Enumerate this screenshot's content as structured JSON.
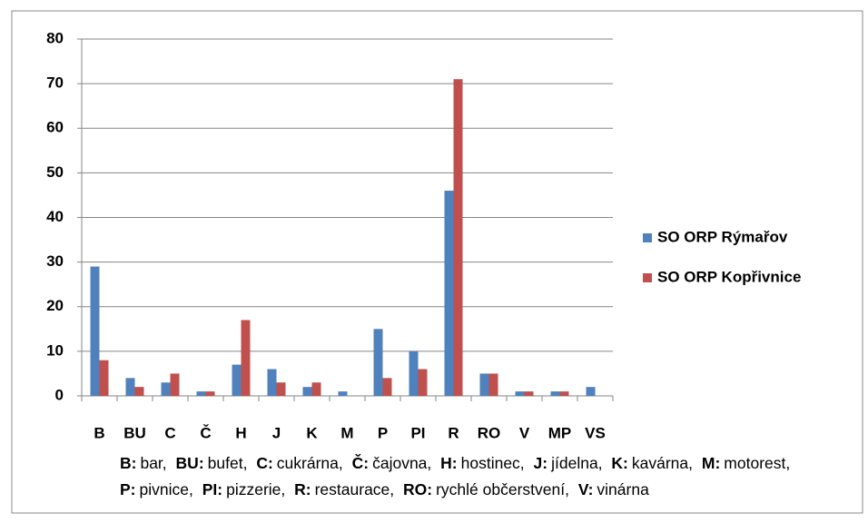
{
  "chart_data": {
    "type": "bar",
    "categories": [
      "B",
      "BU",
      "C",
      "Č",
      "H",
      "J",
      "K",
      "M",
      "P",
      "PI",
      "R",
      "RO",
      "V",
      "MP",
      "VS"
    ],
    "series": [
      {
        "name": "SO ORP Rýmařov",
        "color": "#4f81bd",
        "values": [
          29,
          4,
          3,
          1,
          7,
          6,
          2,
          1,
          15,
          10,
          46,
          5,
          1,
          1,
          2
        ]
      },
      {
        "name": "SO ORP Kopřivnice",
        "color": "#c0504d",
        "values": [
          8,
          2,
          5,
          1,
          17,
          3,
          3,
          0,
          4,
          6,
          71,
          5,
          1,
          1,
          0
        ]
      }
    ],
    "ylim": [
      0,
      80
    ],
    "yticks": [
      0,
      10,
      20,
      30,
      40,
      50,
      60,
      70,
      80
    ],
    "grid": true,
    "legend": "right",
    "footnote": [
      {
        "term": "B:",
        "text": "bar,"
      },
      {
        "term": "BU:",
        "text": "bufet,"
      },
      {
        "term": "C:",
        "text": "cukrárna,"
      },
      {
        "term": "Č:",
        "text": "čajovna,"
      },
      {
        "term": "H:",
        "text": "hostinec,"
      },
      {
        "term": "J:",
        "text": "jídelna,"
      },
      {
        "term": "K:",
        "text": "kavárna,"
      },
      {
        "term": "M:",
        "text": "motorest,"
      },
      {
        "term": "P:",
        "text": "pivnice,"
      },
      {
        "term": "PI:",
        "text": "pizzerie,"
      },
      {
        "term": "R:",
        "text": "restaurace,"
      },
      {
        "term": "RO:",
        "text": "rychlé občerstvení,"
      },
      {
        "term": "V:",
        "text": "vinárna"
      }
    ]
  }
}
